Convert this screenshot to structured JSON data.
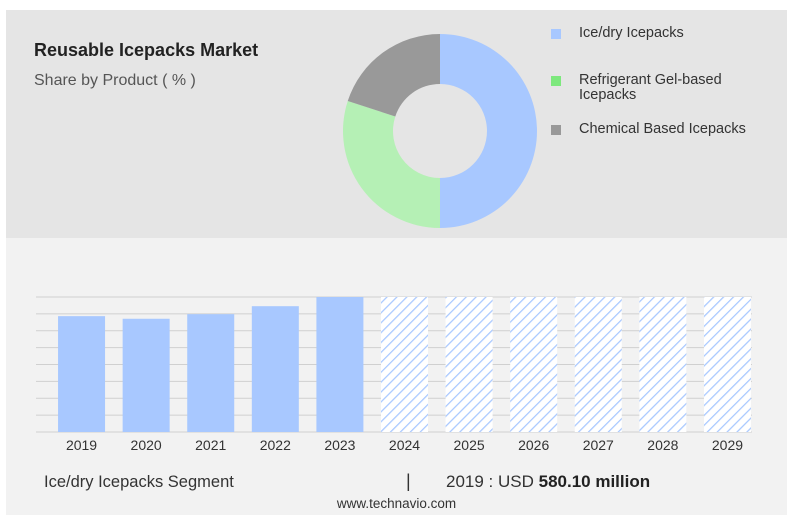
{
  "header": {
    "title": "Reusable Icepacks Market",
    "subtitle": "Share by Product ( % )"
  },
  "chart_data": [
    {
      "type": "pie",
      "variant": "donut",
      "labels": [
        "Ice/dry Icepacks",
        "Refrigerant Gel-based Icepacks",
        "Chemical Based Icepacks"
      ],
      "values": [
        50,
        30,
        20
      ],
      "colors": [
        "#a8c8ff",
        "#b5f0b5",
        "#999999"
      ],
      "legend_colors": [
        "#a8c8ff",
        "#7de87d",
        "#999999"
      ],
      "legend": "right"
    },
    {
      "type": "bar",
      "categories": [
        "2019",
        "2020",
        "2021",
        "2022",
        "2023",
        "2024",
        "2025",
        "2026",
        "2027",
        "2028",
        "2029"
      ],
      "values": [
        580.1,
        567,
        590,
        630,
        676,
        null,
        null,
        null,
        null,
        null,
        null
      ],
      "forecast_start": "2024",
      "ylim": [
        0,
        676
      ],
      "grid": true,
      "bar_color": "#a8c8ff",
      "forecast_color": "#a8c8ff"
    }
  ],
  "legend": {
    "items": [
      "Ice/dry Icepacks",
      "Refrigerant Gel-based Icepacks",
      "Chemical Based Icepacks"
    ]
  },
  "footer": {
    "segment": "Ice/dry Icepacks Segment",
    "separator": "|",
    "year_label": "2019 : USD",
    "value": "580.10 million"
  },
  "source": "www.technavio.com"
}
